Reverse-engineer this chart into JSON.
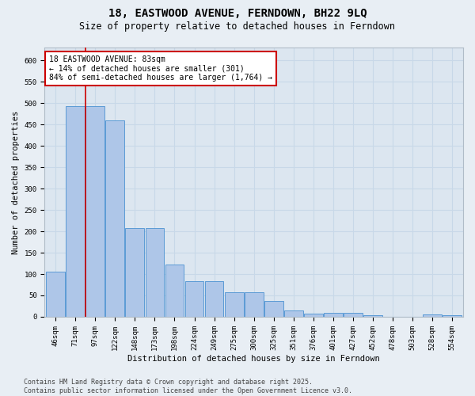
{
  "title": "18, EASTWOOD AVENUE, FERNDOWN, BH22 9LQ",
  "subtitle": "Size of property relative to detached houses in Ferndown",
  "xlabel": "Distribution of detached houses by size in Ferndown",
  "ylabel": "Number of detached properties",
  "categories": [
    "46sqm",
    "71sqm",
    "97sqm",
    "122sqm",
    "148sqm",
    "173sqm",
    "198sqm",
    "224sqm",
    "249sqm",
    "275sqm",
    "300sqm",
    "325sqm",
    "351sqm",
    "376sqm",
    "401sqm",
    "427sqm",
    "452sqm",
    "478sqm",
    "503sqm",
    "528sqm",
    "554sqm"
  ],
  "values": [
    105,
    492,
    492,
    460,
    207,
    207,
    122,
    83,
    83,
    57,
    57,
    37,
    14,
    7,
    10,
    10,
    3,
    0,
    0,
    5,
    3
  ],
  "bar_color": "#aec6e8",
  "bar_edge_color": "#5b9bd5",
  "vline_x": 1.5,
  "vline_color": "#cc0000",
  "annotation_text": "18 EASTWOOD AVENUE: 83sqm\n← 14% of detached houses are smaller (301)\n84% of semi-detached houses are larger (1,764) →",
  "annotation_box_color": "#ffffff",
  "annotation_box_edge_color": "#cc0000",
  "bg_color": "#e8eef4",
  "plot_bg_color": "#dce6f0",
  "grid_color": "#c8d8e8",
  "ylim": [
    0,
    630
  ],
  "yticks": [
    0,
    50,
    100,
    150,
    200,
    250,
    300,
    350,
    400,
    450,
    500,
    550,
    600
  ],
  "footer_text": "Contains HM Land Registry data © Crown copyright and database right 2025.\nContains public sector information licensed under the Open Government Licence v3.0.",
  "title_fontsize": 10,
  "subtitle_fontsize": 8.5,
  "axis_label_fontsize": 7.5,
  "tick_fontsize": 6.5,
  "annotation_fontsize": 7,
  "footer_fontsize": 6
}
